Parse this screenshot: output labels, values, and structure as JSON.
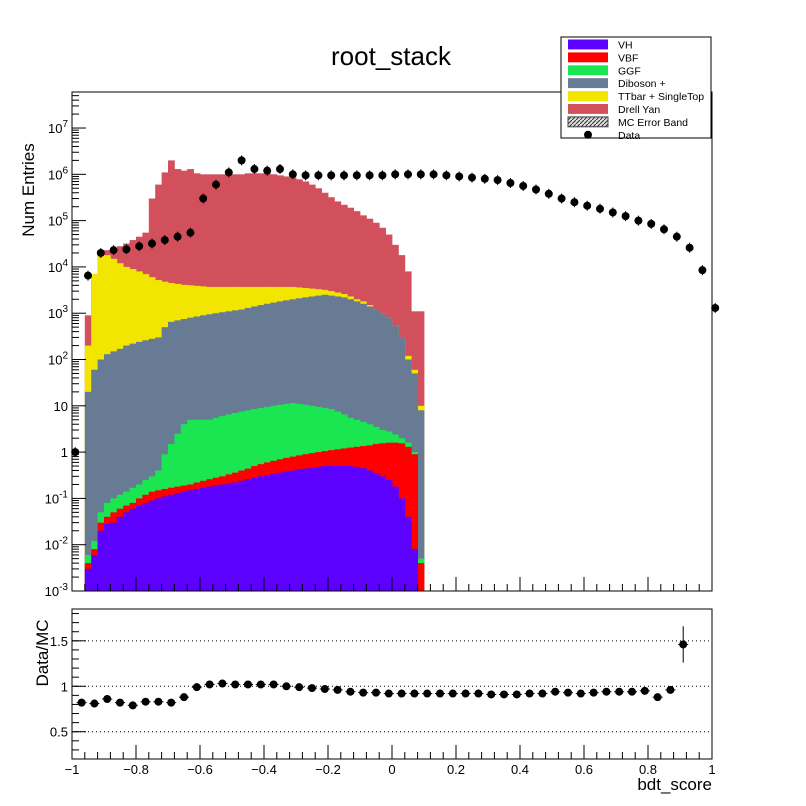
{
  "chart_data": [
    {
      "type": "stacked_histogram",
      "title": "root_stack",
      "ylabel": "Num Entries",
      "xlabel": "",
      "yscale": "log",
      "xlim": [
        -1,
        1
      ],
      "ylim": [
        0.001,
        60000000
      ],
      "y_ticks": [
        {
          "value": 0.001,
          "label": "10^-3"
        },
        {
          "value": 0.01,
          "label": "10^-2"
        },
        {
          "value": 0.1,
          "label": "10^-1"
        },
        {
          "value": 1,
          "label": "1"
        },
        {
          "value": 10,
          "label": "10"
        },
        {
          "value": 100,
          "label": "10^2"
        },
        {
          "value": 1000,
          "label": "10^3"
        },
        {
          "value": 10000,
          "label": "10^4"
        },
        {
          "value": 100000,
          "label": "10^5"
        },
        {
          "value": 1000000,
          "label": "10^6"
        },
        {
          "value": 10000000,
          "label": "10^7"
        }
      ],
      "bin_edges_start": -0.96,
      "bin_width": 0.02,
      "stack_order_bottom_to_top": [
        "VH",
        "VBF",
        "GGF",
        "Diboson +",
        "TTbar + SingleTop",
        "Drell Yan"
      ],
      "stack_cumulative_tops": {
        "VH": [
          0.003,
          0.006,
          0.02,
          0.028,
          0.03,
          0.04,
          0.05,
          0.06,
          0.07,
          0.08,
          0.09,
          0.1,
          0.11,
          0.12,
          0.13,
          0.14,
          0.15,
          0.16,
          0.17,
          0.18,
          0.19,
          0.2,
          0.21,
          0.22,
          0.24,
          0.26,
          0.28,
          0.3,
          0.32,
          0.34,
          0.36,
          0.38,
          0.4,
          0.42,
          0.44,
          0.46,
          0.48,
          0.5,
          0.5,
          0.5,
          0.5,
          0.5,
          0.48,
          0.45,
          0.4,
          0.35,
          0.3,
          0.25,
          0.18,
          0.1,
          0.04,
          0.008,
          0.001
        ],
        "VBF": [
          0.004,
          0.008,
          0.03,
          0.04,
          0.05,
          0.06,
          0.07,
          0.08,
          0.1,
          0.12,
          0.14,
          0.15,
          0.16,
          0.17,
          0.18,
          0.19,
          0.2,
          0.22,
          0.24,
          0.26,
          0.28,
          0.3,
          0.33,
          0.36,
          0.4,
          0.44,
          0.5,
          0.55,
          0.6,
          0.65,
          0.7,
          0.75,
          0.8,
          0.85,
          0.9,
          0.95,
          1.0,
          1.05,
          1.1,
          1.15,
          1.2,
          1.25,
          1.3,
          1.35,
          1.4,
          1.5,
          1.55,
          1.6,
          1.6,
          1.55,
          1.3,
          0.9,
          0.004
        ],
        "GGF": [
          0.006,
          0.012,
          0.05,
          0.08,
          0.1,
          0.12,
          0.14,
          0.17,
          0.2,
          0.25,
          0.3,
          0.4,
          0.9,
          1.5,
          2.5,
          4.0,
          5.0,
          5.0,
          5.0,
          5.0,
          5.5,
          6.0,
          6.5,
          7.0,
          7.5,
          8.0,
          8.5,
          9.0,
          9.5,
          10.0,
          10.5,
          11.0,
          11.5,
          11.0,
          10.5,
          10.0,
          9.5,
          9.0,
          8.5,
          7.5,
          6.5,
          5.5,
          5.0,
          4.5,
          4.0,
          3.5,
          3.0,
          2.8,
          2.4,
          2.0,
          1.6,
          1.0,
          0.005
        ],
        "Diboson +": [
          20,
          60,
          100,
          130,
          150,
          170,
          200,
          220,
          240,
          260,
          280,
          300,
          500,
          650,
          700,
          750,
          800,
          850,
          900,
          950,
          1000,
          1050,
          1100,
          1150,
          1200,
          1300,
          1400,
          1500,
          1600,
          1700,
          1800,
          1900,
          2000,
          2100,
          2200,
          2300,
          2400,
          2500,
          2400,
          2300,
          2200,
          2000,
          1800,
          1600,
          1400,
          1200,
          1000,
          800,
          550,
          300,
          100,
          50,
          8
        ],
        "TTbar + SingleTop": [
          200,
          7000,
          20000,
          18000,
          15000,
          12000,
          10000,
          9000,
          8000,
          7000,
          6000,
          5200,
          4800,
          4500,
          4300,
          4100,
          4000,
          3900,
          3800,
          3700,
          3700,
          3700,
          3700,
          3700,
          3700,
          3700,
          3700,
          3700,
          3700,
          3700,
          3700,
          3700,
          3700,
          3600,
          3500,
          3400,
          3300,
          3200,
          3000,
          2800,
          2600,
          2300,
          2000,
          1800,
          1500,
          1200,
          1000,
          800,
          550,
          300,
          120,
          60,
          10
        ],
        "Drell Yan": [
          900,
          6500,
          20000,
          23000,
          24000,
          28000,
          32000,
          38000,
          45000,
          55000,
          300000,
          600000,
          1100000,
          2000000,
          1300000,
          1200000,
          1300000,
          1050000,
          1000000,
          1000000,
          1000000,
          1000000,
          1000000,
          1000000,
          1000000,
          1050000,
          1050000,
          1050000,
          1050000,
          1000000,
          950000,
          900000,
          850000,
          780000,
          700000,
          600000,
          500000,
          400000,
          320000,
          260000,
          220000,
          190000,
          160000,
          130000,
          110000,
          90000,
          70000,
          50000,
          30000,
          18000,
          8000,
          1100,
          1100
        ]
      },
      "data_points": [
        1,
        6500,
        20000,
        23000,
        24000,
        28000,
        32000,
        38000,
        45000,
        55000,
        300000,
        600000,
        1100000,
        2000000,
        1300000,
        1200000,
        1300000,
        1000000,
        950000,
        950000,
        950000,
        950000,
        950000,
        950000,
        950000,
        1000000,
        1000000,
        1000000,
        1000000,
        950000,
        900000,
        850000,
        800000,
        750000,
        650000,
        560000,
        470000,
        380000,
        300000,
        250000,
        210000,
        180000,
        150000,
        125000,
        100000,
        85000,
        65000,
        45000,
        26000,
        8500,
        1300
      ],
      "data_first_x": -0.99,
      "colors": {
        "VH": "#5c00ff",
        "VBF": "#ff0000",
        "GGF": "#19e651",
        "Diboson +": "#687b94",
        "TTbar + SingleTop": "#f2e500",
        "Drell Yan": "#d1505c",
        "Data": "#000000"
      }
    },
    {
      "type": "scatter",
      "title": "",
      "ylabel": "Data/MC",
      "xlabel": "bdt_score",
      "xlim": [
        -1,
        1
      ],
      "ylim": [
        0.2,
        1.85
      ],
      "x_ticks": [
        {
          "value": -1,
          "label": "−1"
        },
        {
          "value": -0.8,
          "label": "−0.8"
        },
        {
          "value": -0.6,
          "label": "−0.6"
        },
        {
          "value": -0.4,
          "label": "−0.4"
        },
        {
          "value": -0.2,
          "label": "−0.2"
        },
        {
          "value": 0,
          "label": "0"
        },
        {
          "value": 0.2,
          "label": "0.2"
        },
        {
          "value": 0.4,
          "label": "0.4"
        },
        {
          "value": 0.6,
          "label": "0.6"
        },
        {
          "value": 0.8,
          "label": "0.8"
        },
        {
          "value": 1,
          "label": "1"
        }
      ],
      "y_ticks": [
        {
          "value": 0.5,
          "label": "0.5"
        },
        {
          "value": 1,
          "label": "1"
        },
        {
          "value": 1.5,
          "label": "1.5"
        }
      ],
      "gridlines_y": [
        0.5,
        1.0,
        1.5
      ],
      "ratio_first_x": -0.97,
      "ratio_step": 0.04,
      "ratio_values": [
        0.82,
        0.81,
        0.86,
        0.82,
        0.79,
        0.83,
        0.83,
        0.82,
        0.88,
        0.99,
        1.02,
        1.03,
        1.02,
        1.02,
        1.02,
        1.02,
        1.0,
        0.99,
        0.98,
        0.97,
        0.96,
        0.94,
        0.93,
        0.93,
        0.92,
        0.92,
        0.92,
        0.92,
        0.92,
        0.92,
        0.92,
        0.92,
        0.91,
        0.91,
        0.91,
        0.92,
        0.92,
        0.94,
        0.93,
        0.92,
        0.93,
        0.94,
        0.94,
        0.94,
        0.95,
        0.88,
        0.96,
        1.46
      ],
      "ratio_last_errorbar": [
        1.26,
        1.66
      ]
    }
  ],
  "legend": {
    "items": [
      {
        "label": "VH",
        "swatch": "fill",
        "color": "#5c00ff"
      },
      {
        "label": "VBF",
        "swatch": "fill",
        "color": "#ff0000"
      },
      {
        "label": "GGF",
        "swatch": "fill",
        "color": "#19e651"
      },
      {
        "label": "Diboson +",
        "swatch": "fill",
        "color": "#687b94"
      },
      {
        "label": "TTbar + SingleTop",
        "swatch": "fill",
        "color": "#f2e500"
      },
      {
        "label": "Drell Yan",
        "swatch": "fill",
        "color": "#d1505c"
      },
      {
        "label": "MC Error Band",
        "swatch": "hatch",
        "color": "#555555"
      },
      {
        "label": "Data",
        "swatch": "marker",
        "color": "#000000"
      }
    ]
  }
}
